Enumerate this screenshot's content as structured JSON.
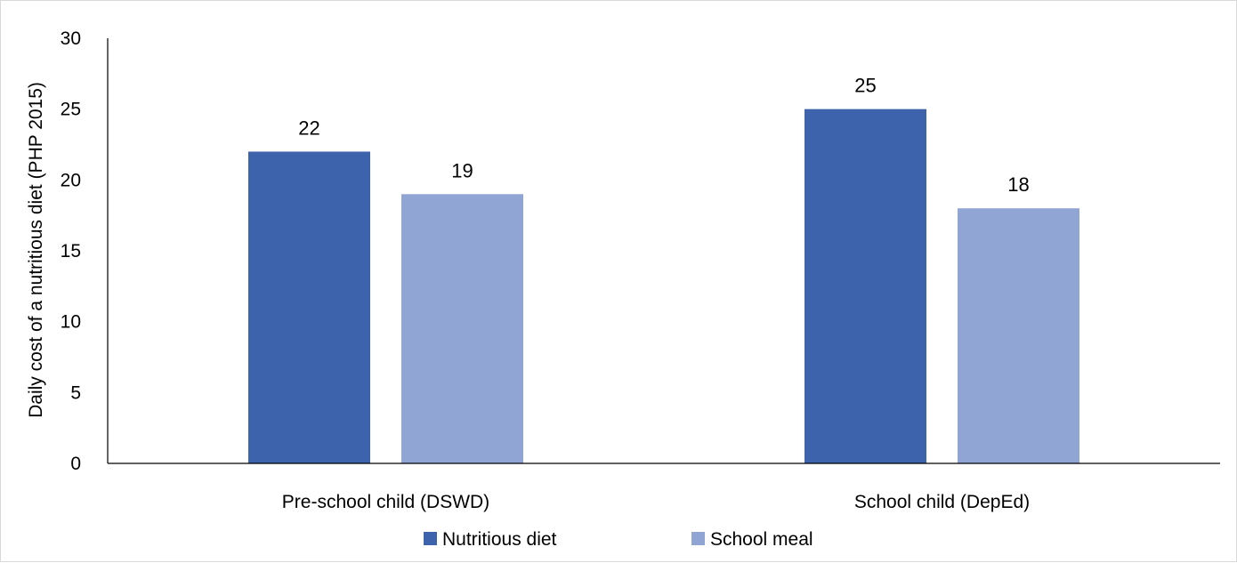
{
  "chart_data": {
    "type": "bar",
    "title": "",
    "xlabel": "",
    "ylabel": "Daily cost of a nutritious diet (PHP 2015)",
    "categories": [
      "Pre-school child (DSWD)",
      "School child (DepEd)"
    ],
    "series": [
      {
        "name": "Nutritious diet",
        "values": [
          22,
          25
        ],
        "color": "#3c63ac"
      },
      {
        "name": "School meal",
        "values": [
          19,
          18
        ],
        "color": "#91a5d5"
      }
    ],
    "ylim": [
      0,
      30
    ],
    "yticks": [
      0,
      5,
      10,
      15,
      20,
      25,
      30
    ],
    "grid": false,
    "legend": "bottom-center",
    "data_labels": true
  }
}
